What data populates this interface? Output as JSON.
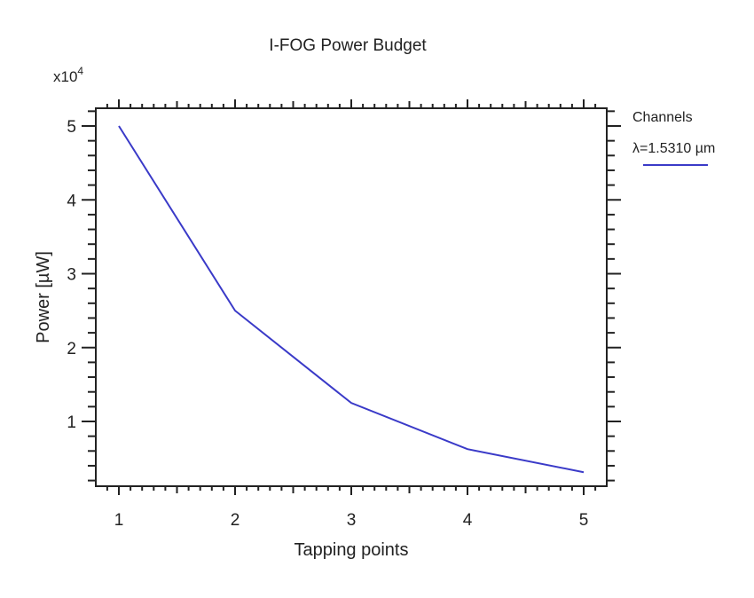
{
  "chart_data": {
    "type": "line",
    "title": "I-FOG Power Budget",
    "xlabel": "Tapping points",
    "ylabel": "Power [µW]",
    "y_multiplier": "x10",
    "y_multiplier_exp": "4",
    "x": [
      1,
      2,
      3,
      4,
      5
    ],
    "series": [
      {
        "name": "λ=1.5310 µm",
        "color": "#3a3ac8",
        "values": [
          50000,
          25000,
          12500,
          6250,
          3125
        ]
      }
    ],
    "x_ticks": [
      "1",
      "2",
      "3",
      "4",
      "5"
    ],
    "y_ticks": [
      "1",
      "2",
      "3",
      "4",
      "5"
    ],
    "xlim": [
      0.85,
      5.2
    ],
    "ylim": [
      0,
      52500
    ],
    "grid": false,
    "legend": {
      "title": "Channels",
      "position": "right"
    }
  }
}
